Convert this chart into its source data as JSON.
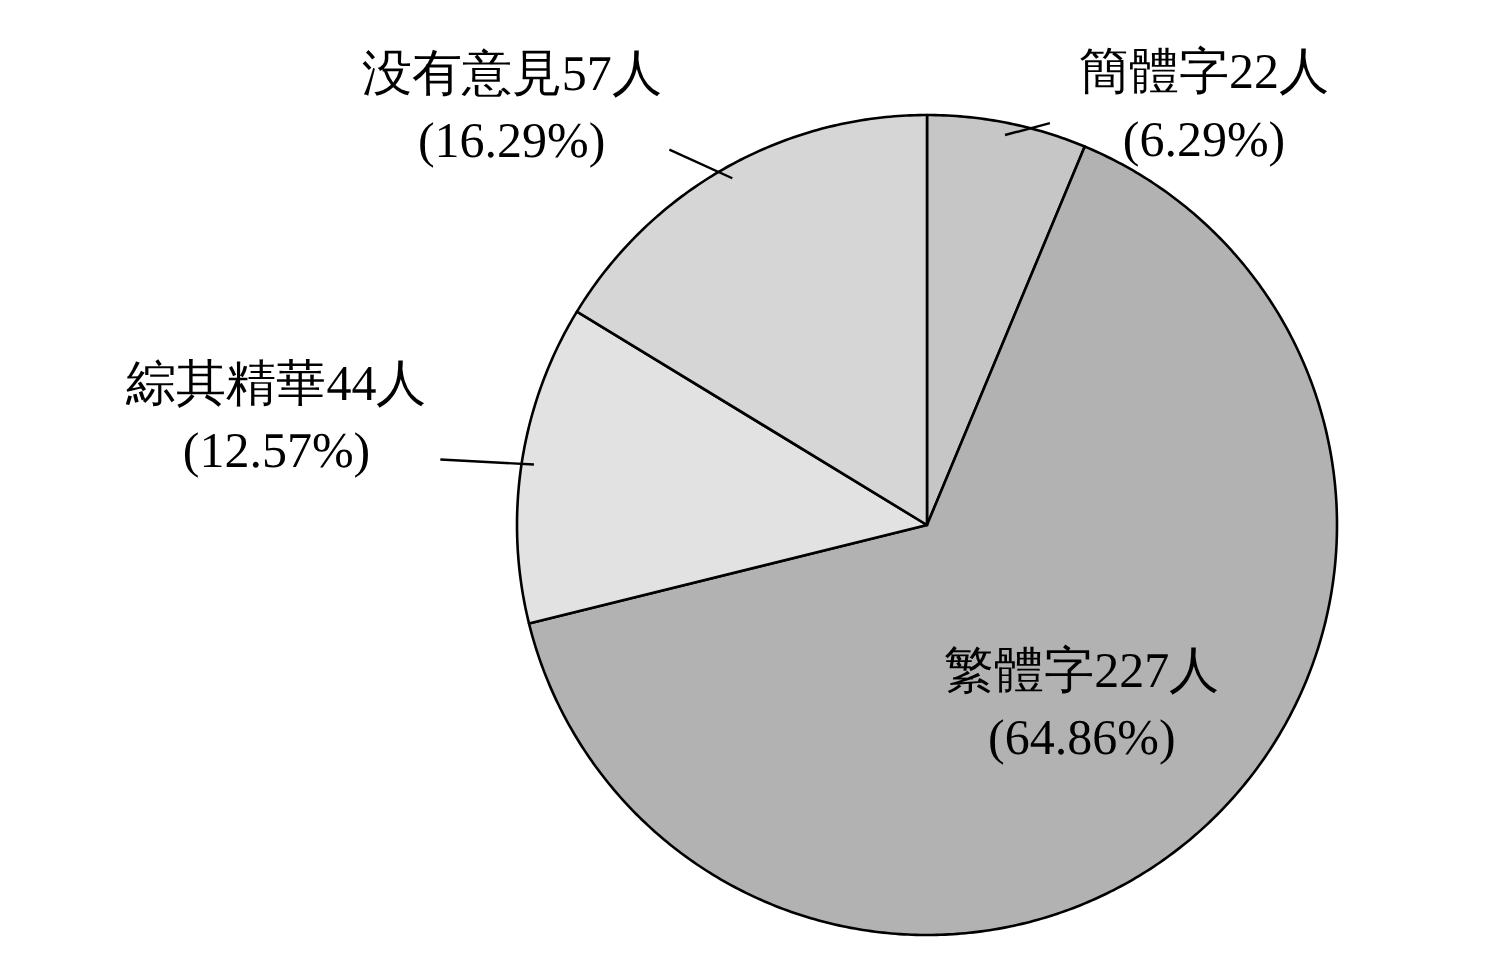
{
  "chart_data": {
    "type": "pie",
    "categories": [
      "簡體字",
      "繁體字",
      "綜其精華",
      "没有意見"
    ],
    "values": [
      22,
      227,
      44,
      57
    ],
    "value_labels": [
      "22人\n(6.29%)",
      "227人\n(64.86%)",
      "44人\n(12.57%)",
      "57人\n(16.29%)"
    ],
    "colors": [
      "#c6c6c6",
      "#b2b2b2",
      "#e2e2e2",
      "#d6d6d6"
    ]
  }
}
